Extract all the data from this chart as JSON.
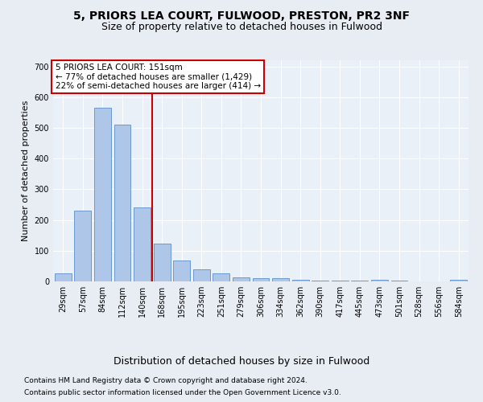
{
  "title": "5, PRIORS LEA COURT, FULWOOD, PRESTON, PR2 3NF",
  "subtitle": "Size of property relative to detached houses in Fulwood",
  "xlabel": "Distribution of detached houses by size in Fulwood",
  "ylabel": "Number of detached properties",
  "categories": [
    "29sqm",
    "57sqm",
    "84sqm",
    "112sqm",
    "140sqm",
    "168sqm",
    "195sqm",
    "223sqm",
    "251sqm",
    "279sqm",
    "306sqm",
    "334sqm",
    "362sqm",
    "390sqm",
    "417sqm",
    "445sqm",
    "473sqm",
    "501sqm",
    "528sqm",
    "556sqm",
    "584sqm"
  ],
  "values": [
    25,
    230,
    565,
    510,
    240,
    122,
    68,
    38,
    25,
    13,
    10,
    10,
    5,
    3,
    3,
    3,
    5,
    3,
    1,
    1,
    4
  ],
  "bar_color": "#aec6e8",
  "bar_edge_color": "#5b8fc9",
  "vline_color": "#cc0000",
  "vline_index": 4.5,
  "annotation_text": "5 PRIORS LEA COURT: 151sqm\n← 77% of detached houses are smaller (1,429)\n22% of semi-detached houses are larger (414) →",
  "annotation_box_color": "#ffffff",
  "annotation_box_edge": "#cc0000",
  "ylim": [
    0,
    720
  ],
  "yticks": [
    0,
    100,
    200,
    300,
    400,
    500,
    600,
    700
  ],
  "bg_color": "#e8edf4",
  "plot_bg_color": "#eaf0f8",
  "footer_line1": "Contains HM Land Registry data © Crown copyright and database right 2024.",
  "footer_line2": "Contains public sector information licensed under the Open Government Licence v3.0.",
  "title_fontsize": 10,
  "subtitle_fontsize": 9,
  "xlabel_fontsize": 9,
  "ylabel_fontsize": 8,
  "tick_fontsize": 7,
  "annotation_fontsize": 7.5,
  "footer_fontsize": 6.5
}
